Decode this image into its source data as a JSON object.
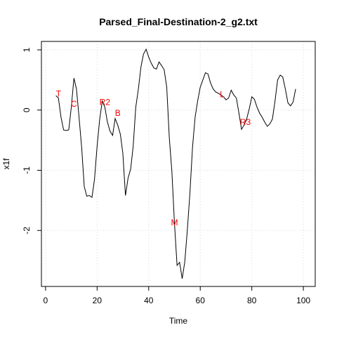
{
  "chart_data": {
    "type": "line",
    "title": "Parsed_Final-Destination-2_g2.txt",
    "xlabel": "Time",
    "ylabel": "x1f",
    "xlim": [
      -1.6,
      104.6
    ],
    "ylim": [
      -2.93,
      1.14
    ],
    "xticks": [
      0,
      20,
      40,
      60,
      80,
      100
    ],
    "yticks": [
      1,
      0,
      -1,
      -2
    ],
    "grid": true,
    "legend": "none",
    "line_color": "#000000",
    "annotation_color": "#ff0000",
    "series": [
      {
        "x": [
          4,
          5,
          6,
          7,
          8,
          9,
          10,
          11,
          12,
          13,
          14,
          15,
          16,
          17,
          18,
          19,
          20,
          21,
          22,
          23,
          24,
          25,
          26,
          27,
          28,
          29,
          30,
          31,
          32,
          33,
          34,
          35,
          36,
          37,
          38,
          39,
          40,
          41,
          42,
          43,
          44,
          45,
          46,
          47,
          48,
          49,
          50,
          51,
          52,
          53,
          54,
          55,
          56,
          57,
          58,
          59,
          60,
          61,
          62,
          63,
          64,
          65,
          66,
          67,
          68,
          69,
          70,
          71,
          72,
          73,
          74,
          75,
          76,
          77,
          78,
          79,
          80,
          81,
          82,
          83,
          84,
          85,
          86,
          87,
          88,
          89,
          90,
          91,
          92,
          93,
          94,
          95,
          96,
          97
        ],
        "y": [
          0.24,
          0.2,
          -0.12,
          -0.33,
          -0.34,
          -0.33,
          0.05,
          0.53,
          0.35,
          -0.12,
          -0.62,
          -1.27,
          -1.43,
          -1.42,
          -1.45,
          -1.15,
          -0.6,
          -0.15,
          0.15,
          0.05,
          -0.2,
          -0.35,
          -0.42,
          -0.14,
          -0.25,
          -0.4,
          -0.72,
          -1.42,
          -1.13,
          -0.98,
          -0.6,
          0.05,
          0.35,
          0.72,
          0.93,
          1.01,
          0.88,
          0.78,
          0.7,
          0.68,
          0.8,
          0.74,
          0.67,
          0.38,
          -0.45,
          -1.02,
          -1.88,
          -2.58,
          -2.53,
          -2.8,
          -2.52,
          -1.98,
          -1.38,
          -0.62,
          -0.12,
          0.15,
          0.38,
          0.5,
          0.62,
          0.6,
          0.45,
          0.35,
          0.3,
          0.28,
          0.25,
          0.22,
          0.17,
          0.2,
          0.33,
          0.25,
          0.2,
          -0.05,
          -0.32,
          -0.25,
          -0.15,
          0.02,
          0.22,
          0.18,
          0.05,
          -0.05,
          -0.12,
          -0.2,
          -0.27,
          -0.23,
          -0.15,
          0.15,
          0.5,
          0.58,
          0.55,
          0.35,
          0.12,
          0.07,
          0.13,
          0.35
        ]
      }
    ],
    "annotations": [
      {
        "label": "T",
        "x": 5,
        "y": 0.27
      },
      {
        "label": "C",
        "x": 11,
        "y": 0.1
      },
      {
        "label": "R2",
        "x": 23,
        "y": 0.13
      },
      {
        "label": "B",
        "x": 28,
        "y": -0.05
      },
      {
        "label": "M",
        "x": 50,
        "y": -1.87
      },
      {
        "label": "L",
        "x": 68.5,
        "y": 0.26
      },
      {
        "label": "R3",
        "x": 77.5,
        "y": -0.2
      }
    ]
  }
}
